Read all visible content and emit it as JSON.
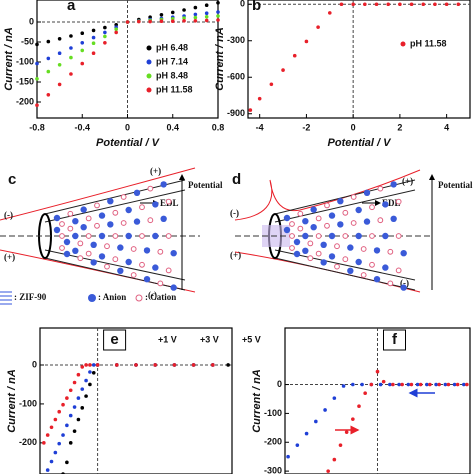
{
  "chart_data": [
    {
      "type": "scatter",
      "panel": "a",
      "xlabel": "Potential / V",
      "ylabel": "Current / nA",
      "xlim": [
        -0.8,
        0.8
      ],
      "ylim": [
        -240,
        55
      ],
      "xticks": [
        -0.8,
        -0.4,
        0,
        0.4,
        0.8
      ],
      "yticks": [
        0,
        -50,
        -100,
        -150,
        -200
      ],
      "legend": "right",
      "x": [
        -0.8,
        -0.7,
        -0.6,
        -0.5,
        -0.4,
        -0.3,
        -0.2,
        -0.1,
        0,
        0.1,
        0.2,
        0.3,
        0.4,
        0.5,
        0.6,
        0.7,
        0.8
      ],
      "series": [
        {
          "name": "pH 6.48",
          "color": "#000000",
          "values": [
            -56,
            -49,
            -42,
            -35,
            -28,
            -21,
            -14,
            -7,
            0,
            6,
            12,
            18,
            24,
            30,
            36,
            42,
            48
          ]
        },
        {
          "name": "pH 7.14",
          "color": "#1f3fd6",
          "values": [
            -104,
            -91,
            -78,
            -65,
            -52,
            -39,
            -26,
            -13,
            0,
            3,
            6,
            9,
            12,
            15,
            19,
            22,
            25
          ]
        },
        {
          "name": "pH 8.48",
          "color": "#66dd22",
          "values": [
            -142,
            -124,
            -107,
            -89,
            -71,
            -53,
            -36,
            -18,
            0,
            2,
            4,
            6,
            8,
            10,
            11,
            13,
            15
          ]
        },
        {
          "name": "pH 11.58",
          "color": "#e8202a",
          "values": [
            -208,
            -182,
            -156,
            -130,
            -104,
            -78,
            -52,
            -26,
            0,
            1,
            1,
            2,
            2,
            3,
            3,
            4,
            5
          ]
        }
      ]
    },
    {
      "type": "scatter",
      "panel": "b",
      "xlabel": "Potential / V",
      "ylabel": "Current / nA",
      "xlim": [
        -4.5,
        5
      ],
      "ylim": [
        -935,
        35
      ],
      "xticks": [
        -4,
        -2,
        0,
        2,
        4
      ],
      "yticks": [
        0,
        -300,
        -600,
        -900
      ],
      "legend": "upper right",
      "x": [
        -4.4,
        -4,
        -3.5,
        -3,
        -2.5,
        -2,
        -1.5,
        -1,
        -0.5,
        0,
        0.5,
        1,
        1.5,
        2,
        2.5,
        3,
        3.5,
        4,
        4.5
      ],
      "series": [
        {
          "name": "pH 11.58",
          "color": "#e8202a",
          "values": [
            -870,
            -776,
            -658,
            -541,
            -423,
            -306,
            -188,
            -71,
            0,
            0,
            0,
            0,
            0,
            0,
            0,
            0,
            0,
            0,
            0
          ]
        }
      ]
    },
    {
      "type": "scatter",
      "panel": "e",
      "ylabel": "Current / nA",
      "xlim": [
        -1.5,
        3.5
      ],
      "ylim": [
        -280,
        95
      ],
      "yticks": [
        0,
        -100,
        -200
      ],
      "legend": "top",
      "series": [
        {
          "name": "+1 V",
          "color": "#000000",
          "x": [
            -0.9,
            -0.8,
            -0.7,
            -0.6,
            -0.5,
            -0.4,
            -0.3,
            -0.2,
            -0.1,
            0,
            0.5,
            1,
            1.5,
            2,
            2.5,
            3,
            3.4
          ],
          "values": [
            -280,
            -250,
            -200,
            -170,
            -140,
            -110,
            -80,
            -50,
            -20,
            0,
            0,
            0,
            0,
            0,
            0,
            0,
            0
          ]
        },
        {
          "name": "+3 V",
          "color": "#1f3fd6",
          "x": [
            -1.3,
            -1.2,
            -1.1,
            -1.0,
            -0.9,
            -0.8,
            -0.7,
            -0.6,
            -0.5,
            -0.4,
            -0.3,
            -0.2,
            -0.1,
            0,
            0.5,
            1,
            1.5,
            2,
            2.5,
            3
          ],
          "values": [
            -270,
            -248,
            -225,
            -202,
            -180,
            -155,
            -130,
            -108,
            -85,
            -62,
            -40,
            -18,
            0,
            0,
            0,
            0,
            0,
            0,
            0,
            0
          ]
        },
        {
          "name": "+5 V",
          "color": "#e8202a",
          "x": [
            -1.4,
            -1.3,
            -1.2,
            -1.1,
            -1.0,
            -0.9,
            -0.8,
            -0.7,
            -0.6,
            -0.5,
            -0.4,
            -0.3,
            -0.2,
            0,
            0.5,
            1,
            1.5,
            2,
            2.5,
            3
          ],
          "values": [
            -200,
            -180,
            -160,
            -140,
            -120,
            -102,
            -85,
            -65,
            -45,
            -25,
            -5,
            0,
            0,
            0,
            0,
            0,
            0,
            0,
            0,
            0
          ]
        }
      ]
    },
    {
      "type": "scatter",
      "panel": "f",
      "ylabel": "Current / nA",
      "xlim": [
        -3,
        3
      ],
      "ylim": [
        -310,
        196
      ],
      "yticks": [
        0,
        -100,
        -200,
        -300
      ],
      "series": [
        {
          "color": "#1f3fd6",
          "x": [
            -2.9,
            -2.6,
            -2.3,
            -2,
            -1.7,
            -1.4,
            -1.1,
            -0.8,
            -0.5,
            -0.2,
            0.1,
            0.4,
            0.7,
            1,
            1.3,
            1.6,
            1.9,
            2.2,
            2.5,
            2.8
          ],
          "values": [
            -250,
            -210,
            -170,
            -128,
            -88,
            -47,
            -5,
            0,
            0,
            0,
            0,
            0,
            0,
            0,
            0,
            0,
            0,
            0,
            0,
            0
          ]
        },
        {
          "color": "#e8202a",
          "x": [
            -1.6,
            -1.4,
            -1.2,
            -1.0,
            -0.8,
            -0.6,
            -0.4,
            -0.2,
            0,
            0.2,
            0.5,
            0.8,
            1.1,
            1.4,
            1.7,
            2,
            2.3,
            2.6,
            2.9
          ],
          "values": [
            -300,
            -260,
            -210,
            -165,
            -120,
            -75,
            -30,
            0,
            45,
            10,
            0,
            0,
            0,
            0,
            0,
            0,
            0,
            0,
            0
          ]
        }
      ]
    }
  ],
  "diagrams": {
    "c": {
      "label": "c",
      "signs": [
        "(+)",
        "(-)",
        "(+)",
        "(-)"
      ],
      "edl": "EDL",
      "axis": "Potential"
    },
    "d": {
      "label": "d",
      "signs": [
        "(+)",
        "(-)",
        "(+)",
        "(-)"
      ],
      "edl": "EDL",
      "axis": "Potential"
    },
    "legend": [
      ": ZIF-90",
      ": Anion",
      ": Cation"
    ]
  }
}
